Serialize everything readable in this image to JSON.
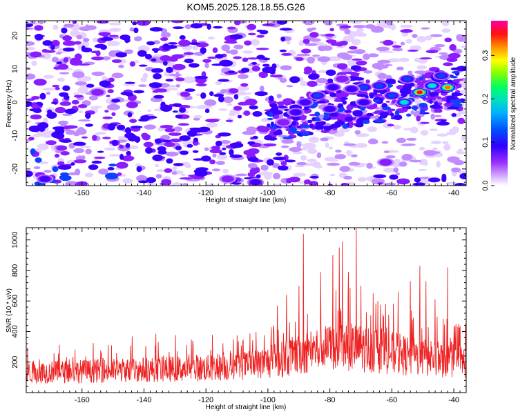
{
  "chart_data": [
    {
      "type": "heatmap",
      "title": "KOM5.2025.128.18.55.G26",
      "xlabel": "Height of straight line (km)",
      "ylabel": "Frequency (Hz)",
      "xlim": [
        -178,
        -36
      ],
      "ylim": [
        -25,
        24.5
      ],
      "xticks": [
        -160,
        -140,
        -120,
        -100,
        -80,
        -60,
        -40
      ],
      "yticks": [
        -20,
        -10,
        0,
        10,
        20
      ],
      "colorbar": {
        "label": "Normalized spectral amplitude",
        "range": [
          0,
          0.38
        ],
        "ticks": [
          "0.0",
          "0.1",
          "0.2",
          "0.3"
        ],
        "colormap": [
          "#ffffff",
          "#d9b8ff",
          "#9b30ff",
          "#4b00ff",
          "#1010f0",
          "#00a0ff",
          "#00e0e0",
          "#00ff80",
          "#60ff00",
          "#d0ff00",
          "#ffe000",
          "#ff8000",
          "#ff2000",
          "#ff00a0"
        ]
      },
      "features": [
        {
          "x": -51,
          "y": 3,
          "value": 0.36
        },
        {
          "x": -42,
          "y": 4.5,
          "value": 0.33
        },
        {
          "x": -47,
          "y": 5,
          "value": 0.2
        },
        {
          "x": -56,
          "y": 0,
          "value": 0.2
        },
        {
          "x": -60,
          "y": 2,
          "value": 0.14
        },
        {
          "x": -55,
          "y": 7,
          "value": 0.14
        },
        {
          "x": -44,
          "y": 8,
          "value": 0.15
        },
        {
          "x": -64,
          "y": 5,
          "value": 0.15
        },
        {
          "x": -69,
          "y": 4.5,
          "value": 0.14
        },
        {
          "x": -73,
          "y": 4,
          "value": 0.12
        },
        {
          "x": -79,
          "y": 4.5,
          "value": 0.12
        },
        {
          "x": -84,
          "y": 2,
          "value": 0.14
        },
        {
          "x": -88,
          "y": 0,
          "value": 0.13
        },
        {
          "x": -91,
          "y": -3,
          "value": 0.11
        },
        {
          "x": -95,
          "y": -6,
          "value": 0.1
        },
        {
          "x": -69,
          "y": 0,
          "value": 0.12
        },
        {
          "x": -80,
          "y": -2,
          "value": 0.12
        },
        {
          "x": -76,
          "y": 7,
          "value": 0.1
        },
        {
          "x": -104,
          "y": -24,
          "value": 0.12
        },
        {
          "x": -172,
          "y": -23,
          "value": 0.12
        },
        {
          "x": -62,
          "y": -18,
          "value": 0.09
        },
        {
          "x": -155,
          "y": 3,
          "value": 0.09
        },
        {
          "x": -113,
          "y": -23,
          "value": 0.08
        }
      ]
    },
    {
      "type": "line",
      "xlabel": "Height of straight line (km)",
      "ylabel": "SNR (10 * v/v)",
      "xlim": [
        -178,
        -36
      ],
      "ylim": [
        0,
        1080
      ],
      "xticks": [
        -160,
        -140,
        -120,
        -100,
        -80,
        -60,
        -40
      ],
      "yticks": [
        200,
        400,
        600,
        800,
        1000
      ],
      "line_color": "#ee2222",
      "envelope": [
        {
          "x": -178,
          "base": 130,
          "peak": 330
        },
        {
          "x": -160,
          "base": 140,
          "peak": 310
        },
        {
          "x": -140,
          "base": 150,
          "peak": 400
        },
        {
          "x": -120,
          "base": 160,
          "peak": 380
        },
        {
          "x": -105,
          "base": 180,
          "peak": 400
        },
        {
          "x": -95,
          "base": 220,
          "peak": 520
        },
        {
          "x": -85,
          "base": 280,
          "peak": 620
        },
        {
          "x": -75,
          "base": 300,
          "peak": 700
        },
        {
          "x": -65,
          "base": 280,
          "peak": 620
        },
        {
          "x": -55,
          "base": 240,
          "peak": 560
        },
        {
          "x": -45,
          "base": 220,
          "peak": 500
        },
        {
          "x": -36,
          "base": 200,
          "peak": 470
        }
      ],
      "peaks": [
        {
          "x": -71.5,
          "y": 1075
        },
        {
          "x": -88.5,
          "y": 1040
        },
        {
          "x": -76,
          "y": 990
        },
        {
          "x": -77,
          "y": 950
        },
        {
          "x": -79,
          "y": 900
        },
        {
          "x": -83,
          "y": 790
        },
        {
          "x": -74,
          "y": 790
        },
        {
          "x": -51,
          "y": 830
        },
        {
          "x": -42,
          "y": 820
        },
        {
          "x": -49,
          "y": 730
        },
        {
          "x": -54,
          "y": 730
        },
        {
          "x": -90,
          "y": 700
        },
        {
          "x": -70,
          "y": 700
        },
        {
          "x": -66,
          "y": 650
        },
        {
          "x": -94,
          "y": 640
        },
        {
          "x": -58,
          "y": 660
        },
        {
          "x": -62,
          "y": 580
        },
        {
          "x": -46,
          "y": 610
        },
        {
          "x": -97,
          "y": 570
        }
      ]
    }
  ]
}
